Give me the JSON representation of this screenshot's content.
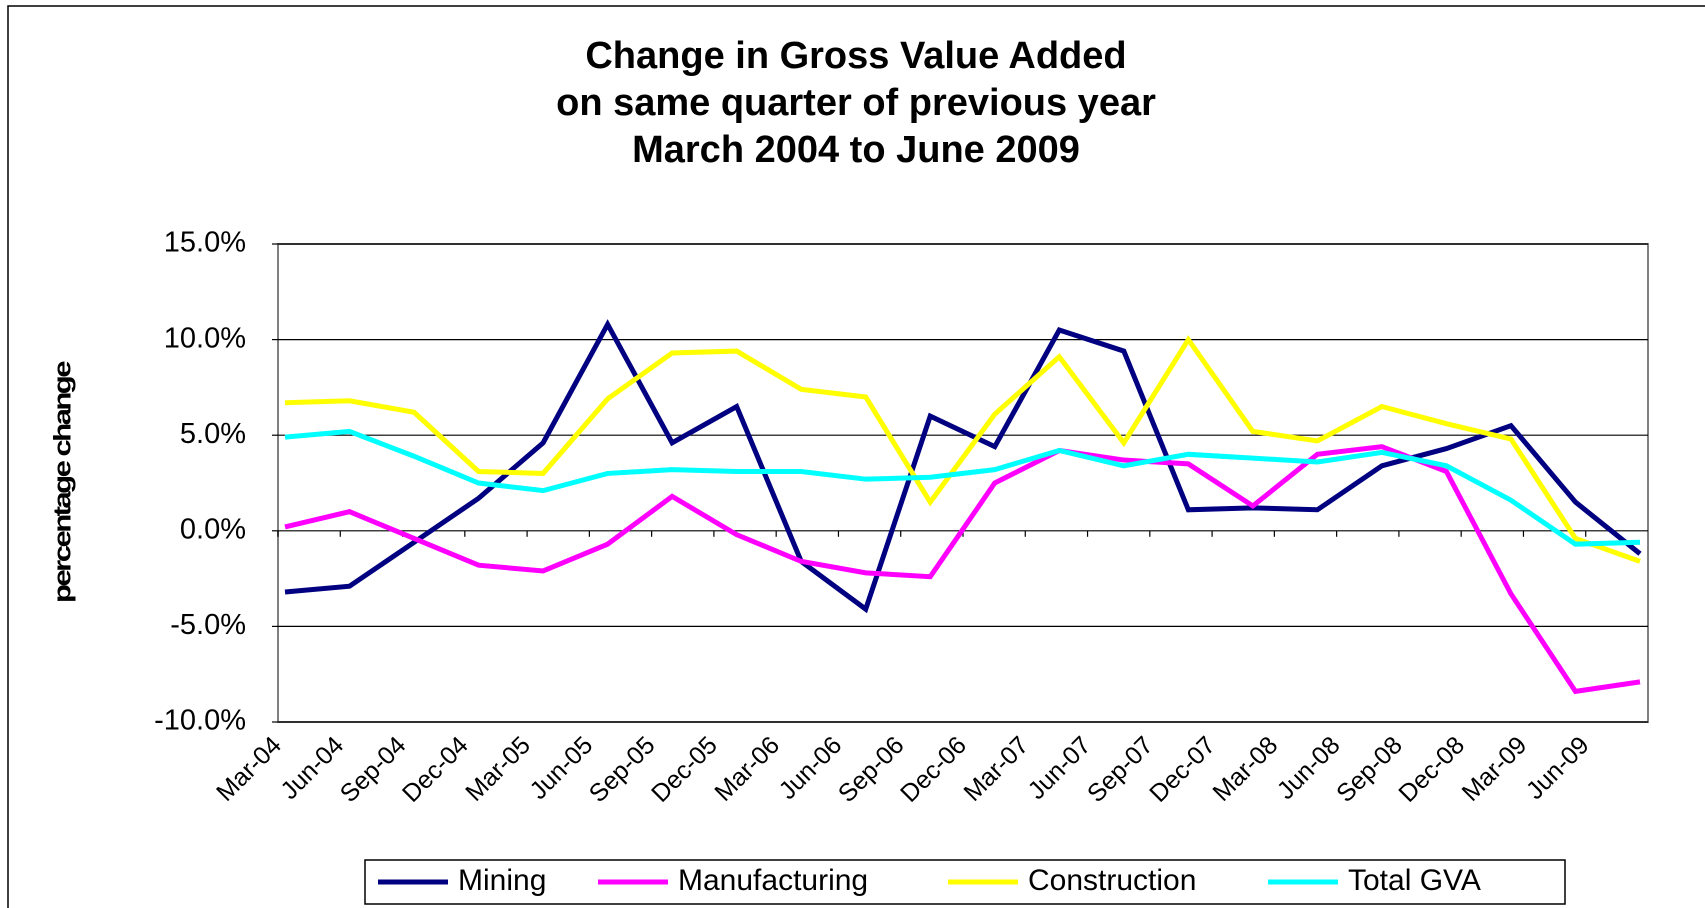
{
  "chart_data": {
    "type": "line",
    "title": [
      "Change in Gross Value Added",
      "on same quarter of previous year",
      "March 2004 to June 2009"
    ],
    "y_label": "percentage change",
    "categories": [
      "Mar-04",
      "Jun-04",
      "Sep-04",
      "Dec-04",
      "Mar-05",
      "Jun-05",
      "Sep-05",
      "Dec-05",
      "Mar-06",
      "Jun-06",
      "Sep-06",
      "Dec-06",
      "Mar-07",
      "Jun-07",
      "Sep-07",
      "Dec-07",
      "Mar-08",
      "Jun-08",
      "Sep-08",
      "Dec-08",
      "Mar-09",
      "Jun-09"
    ],
    "series": [
      {
        "name": "Mining",
        "color": "#000080",
        "values": [
          -3.2,
          -2.9,
          -0.6,
          1.7,
          4.6,
          10.8,
          4.6,
          6.5,
          -1.6,
          -4.1,
          6.0,
          4.4,
          10.5,
          9.4,
          1.1,
          1.2,
          1.1,
          3.4,
          4.3,
          5.5,
          1.5,
          -1.2
        ]
      },
      {
        "name": "Manufacturing",
        "color": "#ff00ff",
        "values": [
          0.2,
          1.0,
          -0.4,
          -1.8,
          -2.1,
          -0.7,
          1.8,
          -0.2,
          -1.6,
          -2.2,
          -2.4,
          2.5,
          4.2,
          3.7,
          3.5,
          1.3,
          4.0,
          4.4,
          3.1,
          -3.3,
          -8.4,
          -7.9
        ]
      },
      {
        "name": "Construction",
        "color": "#ffff00",
        "values": [
          6.7,
          6.8,
          6.2,
          3.1,
          3.0,
          6.9,
          9.3,
          9.4,
          7.4,
          7.0,
          1.5,
          6.1,
          9.1,
          4.6,
          10.0,
          5.2,
          4.7,
          6.5,
          5.6,
          4.8,
          -0.4,
          -1.6
        ]
      },
      {
        "name": "Total GVA",
        "color": "#00ffff",
        "values": [
          4.9,
          5.2,
          3.9,
          2.5,
          2.1,
          3.0,
          3.2,
          3.1,
          3.1,
          2.7,
          2.8,
          3.2,
          4.2,
          3.4,
          4.0,
          3.8,
          3.6,
          4.1,
          3.4,
          1.6,
          -0.7,
          -0.6
        ]
      }
    ],
    "ylim": [
      -10,
      15
    ],
    "yticks": [
      {
        "value": -10,
        "label": "-10.0%"
      },
      {
        "value": -5,
        "label": "-5.0%"
      },
      {
        "value": 0,
        "label": "0.0%"
      },
      {
        "value": 5,
        "label": "5.0%"
      },
      {
        "value": 10,
        "label": "10.0%"
      },
      {
        "value": 15,
        "label": "15.0%"
      }
    ],
    "grid": true,
    "legend": "bottom"
  }
}
